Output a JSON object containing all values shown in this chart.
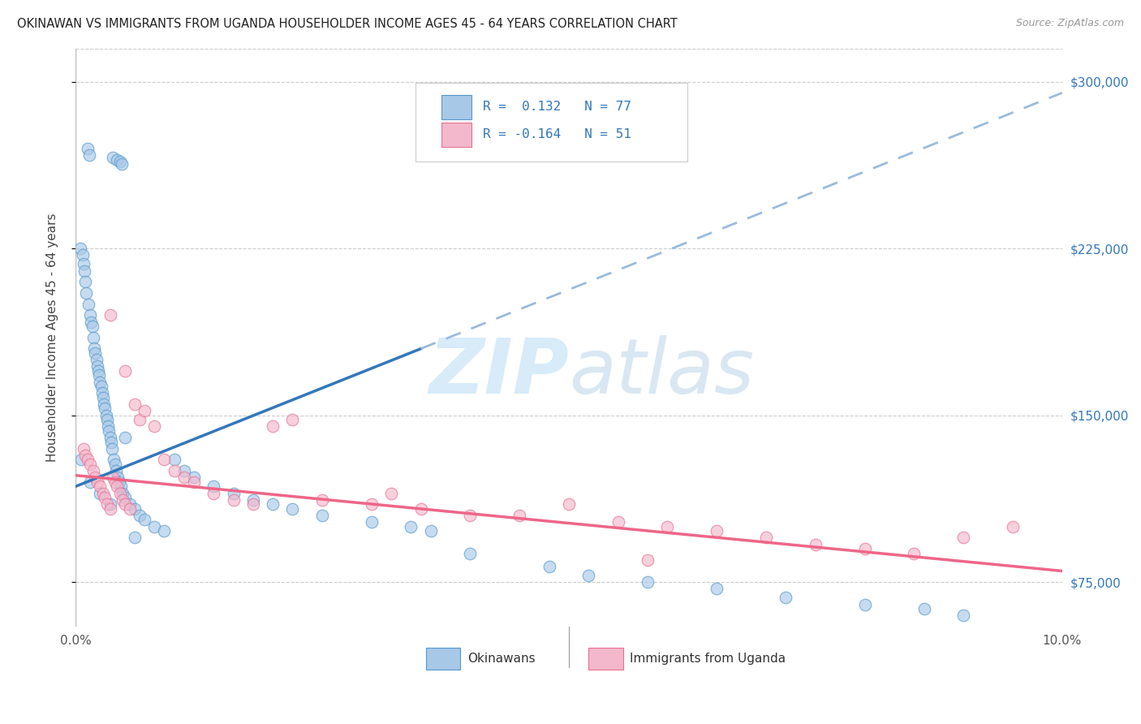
{
  "title": "OKINAWAN VS IMMIGRANTS FROM UGANDA HOUSEHOLDER INCOME AGES 45 - 64 YEARS CORRELATION CHART",
  "source": "Source: ZipAtlas.com",
  "ylabel": "Householder Income Ages 45 - 64 years",
  "xlim": [
    0.0,
    10.0
  ],
  "ylim": [
    55000,
    315000
  ],
  "ytick_positions": [
    75000,
    150000,
    225000,
    300000
  ],
  "ytick_labels": [
    "$75,000",
    "$150,000",
    "$225,000",
    "$300,000"
  ],
  "blue_color": "#a8c8e8",
  "pink_color": "#f4b8cc",
  "blue_edge_color": "#5599cc",
  "pink_edge_color": "#e87090",
  "blue_line_color": "#3377bb",
  "pink_line_color": "#ee6688",
  "dashed_line_color": "#99bbdd",
  "watermark_color": "#d0e8f8",
  "background_color": "#ffffff",
  "grid_color": "#cccccc",
  "blue_scatter_x": [
    0.12,
    0.14,
    0.38,
    0.42,
    0.45,
    0.47,
    0.05,
    0.07,
    0.08,
    0.09,
    0.1,
    0.11,
    0.13,
    0.15,
    0.16,
    0.17,
    0.18,
    0.19,
    0.2,
    0.21,
    0.22,
    0.23,
    0.24,
    0.25,
    0.26,
    0.27,
    0.28,
    0.29,
    0.3,
    0.31,
    0.32,
    0.33,
    0.34,
    0.35,
    0.36,
    0.37,
    0.39,
    0.4,
    0.41,
    0.43,
    0.44,
    0.46,
    0.48,
    0.5,
    0.55,
    0.6,
    0.65,
    0.7,
    0.8,
    0.9,
    1.0,
    1.1,
    1.2,
    1.4,
    1.6,
    1.8,
    2.0,
    2.2,
    2.5,
    3.0,
    3.4,
    3.6,
    4.0,
    4.8,
    5.2,
    5.8,
    6.5,
    7.2,
    8.0,
    8.6,
    9.0,
    0.06,
    0.15,
    0.25,
    0.35,
    0.5,
    0.6
  ],
  "blue_scatter_y": [
    270000,
    267000,
    266000,
    265000,
    264000,
    263000,
    225000,
    222000,
    218000,
    215000,
    210000,
    205000,
    200000,
    195000,
    192000,
    190000,
    185000,
    180000,
    178000,
    175000,
    172000,
    170000,
    168000,
    165000,
    163000,
    160000,
    158000,
    155000,
    153000,
    150000,
    148000,
    145000,
    143000,
    140000,
    138000,
    135000,
    130000,
    128000,
    125000,
    122000,
    120000,
    118000,
    115000,
    113000,
    110000,
    108000,
    105000,
    103000,
    100000,
    98000,
    130000,
    125000,
    122000,
    118000,
    115000,
    112000,
    110000,
    108000,
    105000,
    102000,
    100000,
    98000,
    88000,
    82000,
    78000,
    75000,
    72000,
    68000,
    65000,
    63000,
    60000,
    130000,
    120000,
    115000,
    110000,
    140000,
    95000
  ],
  "pink_scatter_x": [
    0.08,
    0.1,
    0.12,
    0.15,
    0.18,
    0.2,
    0.22,
    0.25,
    0.28,
    0.3,
    0.32,
    0.35,
    0.38,
    0.4,
    0.42,
    0.45,
    0.48,
    0.5,
    0.55,
    0.6,
    0.65,
    0.7,
    0.8,
    0.9,
    1.0,
    1.1,
    1.2,
    1.4,
    1.6,
    1.8,
    2.0,
    2.2,
    2.5,
    3.0,
    3.5,
    4.0,
    4.5,
    5.0,
    5.5,
    6.0,
    6.5,
    7.0,
    7.5,
    8.0,
    8.5,
    9.0,
    9.5,
    0.35,
    0.5,
    3.2,
    5.8
  ],
  "pink_scatter_y": [
    135000,
    132000,
    130000,
    128000,
    125000,
    122000,
    120000,
    118000,
    115000,
    113000,
    110000,
    108000,
    122000,
    120000,
    118000,
    115000,
    112000,
    110000,
    108000,
    155000,
    148000,
    152000,
    145000,
    130000,
    125000,
    122000,
    120000,
    115000,
    112000,
    110000,
    145000,
    148000,
    112000,
    110000,
    108000,
    105000,
    105000,
    110000,
    102000,
    100000,
    98000,
    95000,
    92000,
    90000,
    88000,
    95000,
    100000,
    195000,
    170000,
    115000,
    85000
  ],
  "blue_trend_x0": 0.0,
  "blue_trend_y0": 118000,
  "blue_trend_x1": 10.0,
  "blue_trend_y1": 295000,
  "blue_solid_x1": 3.5,
  "pink_trend_x0": 0.0,
  "pink_trend_y0": 123000,
  "pink_trend_x1": 10.0,
  "pink_trend_y1": 80000
}
